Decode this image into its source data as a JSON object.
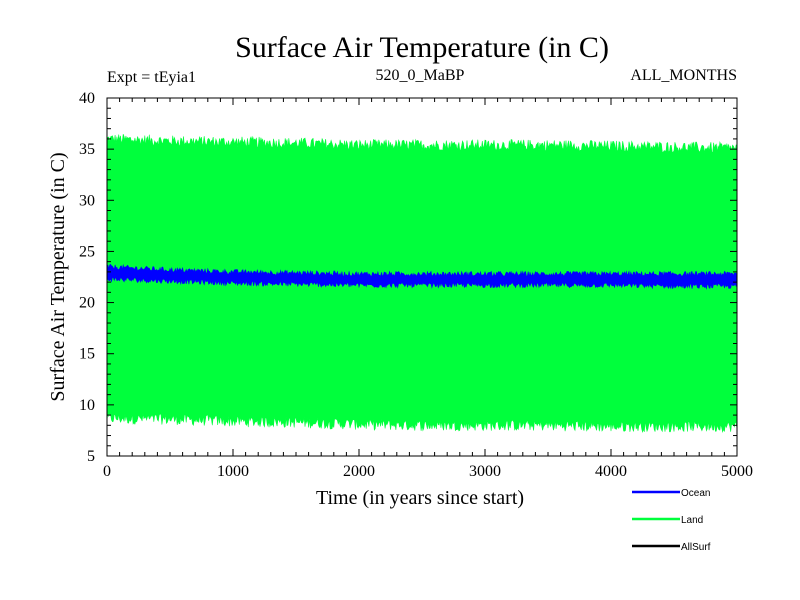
{
  "chart_data": {
    "type": "area",
    "title": "Surface Air Temperature (in C)",
    "subtitle_left": "Expt = tEyia1",
    "subtitle_center": "520_0_MaBP",
    "subtitle_right": "ALL_MONTHS",
    "xlabel": "Time (in years since start)",
    "ylabel": "Surface Air Temperature (in C)",
    "xlim": [
      0,
      5000
    ],
    "ylim": [
      5,
      40
    ],
    "x_ticks": [
      0,
      1000,
      2000,
      3000,
      4000,
      5000
    ],
    "y_ticks": [
      5,
      10,
      15,
      20,
      25,
      30,
      35,
      40
    ],
    "x_tick_labels": [
      "0",
      "1000",
      "2000",
      "3000",
      "4000",
      "5000"
    ],
    "y_tick_labels": [
      "5",
      "10",
      "15",
      "20",
      "25",
      "30",
      "35",
      "40"
    ],
    "grid": false,
    "legend_position": "bottom-right, below plot",
    "series": [
      {
        "name": "Land",
        "color": "#00ff3c",
        "style": "envelope",
        "x": [
          0,
          500,
          1000,
          1500,
          2000,
          2500,
          3000,
          3500,
          4000,
          4500,
          5000
        ],
        "upper": [
          36.0,
          35.8,
          35.7,
          35.6,
          35.4,
          35.4,
          35.4,
          35.4,
          35.3,
          35.2,
          35.1
        ],
        "lower": [
          8.7,
          8.6,
          8.4,
          8.3,
          8.1,
          8.0,
          8.0,
          8.0,
          7.9,
          7.9,
          7.9
        ]
      },
      {
        "name": "Ocean",
        "color": "#0000ff",
        "style": "envelope",
        "x": [
          0,
          500,
          1000,
          1500,
          2000,
          2500,
          3000,
          3500,
          4000,
          4500,
          5000
        ],
        "upper": [
          23.5,
          23.2,
          23.0,
          22.9,
          22.8,
          22.8,
          22.8,
          22.8,
          22.8,
          22.8,
          22.8
        ],
        "lower": [
          22.3,
          22.1,
          21.9,
          21.8,
          21.7,
          21.7,
          21.7,
          21.7,
          21.7,
          21.6,
          21.6
        ]
      },
      {
        "name": "AllSurf",
        "color": "#000000",
        "style": "line",
        "x": [],
        "values": []
      }
    ],
    "legend": [
      {
        "label": "Ocean",
        "color": "#0000ff"
      },
      {
        "label": "Land",
        "color": "#00ff3c"
      },
      {
        "label": "AllSurf",
        "color": "#000000"
      }
    ]
  }
}
